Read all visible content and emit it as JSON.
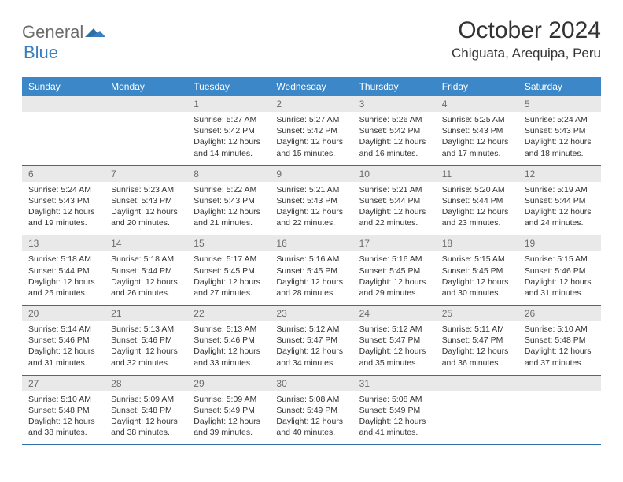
{
  "logo": {
    "text_gray": "General",
    "text_blue": "Blue"
  },
  "title": "October 2024",
  "location": "Chiguata, Arequipa, Peru",
  "colors": {
    "header_bg": "#3c87c7",
    "header_text": "#ffffff",
    "daynum_bg": "#e9e9e9",
    "daynum_text": "#6b6b6b",
    "row_border": "#2f6fa3",
    "logo_gray": "#6b6b6b",
    "logo_blue": "#3b7ebf",
    "body_text": "#333333",
    "background": "#ffffff"
  },
  "typography": {
    "title_fontsize": 30,
    "location_fontsize": 17,
    "header_fontsize": 12,
    "daynum_fontsize": 12,
    "cell_fontsize": 10.5
  },
  "day_headers": [
    "Sunday",
    "Monday",
    "Tuesday",
    "Wednesday",
    "Thursday",
    "Friday",
    "Saturday"
  ],
  "weeks": [
    {
      "nums": [
        "",
        "",
        "1",
        "2",
        "3",
        "4",
        "5"
      ],
      "cells": [
        null,
        null,
        {
          "sunrise": "Sunrise: 5:27 AM",
          "sunset": "Sunset: 5:42 PM",
          "day1": "Daylight: 12 hours",
          "day2": "and 14 minutes."
        },
        {
          "sunrise": "Sunrise: 5:27 AM",
          "sunset": "Sunset: 5:42 PM",
          "day1": "Daylight: 12 hours",
          "day2": "and 15 minutes."
        },
        {
          "sunrise": "Sunrise: 5:26 AM",
          "sunset": "Sunset: 5:42 PM",
          "day1": "Daylight: 12 hours",
          "day2": "and 16 minutes."
        },
        {
          "sunrise": "Sunrise: 5:25 AM",
          "sunset": "Sunset: 5:43 PM",
          "day1": "Daylight: 12 hours",
          "day2": "and 17 minutes."
        },
        {
          "sunrise": "Sunrise: 5:24 AM",
          "sunset": "Sunset: 5:43 PM",
          "day1": "Daylight: 12 hours",
          "day2": "and 18 minutes."
        }
      ]
    },
    {
      "nums": [
        "6",
        "7",
        "8",
        "9",
        "10",
        "11",
        "12"
      ],
      "cells": [
        {
          "sunrise": "Sunrise: 5:24 AM",
          "sunset": "Sunset: 5:43 PM",
          "day1": "Daylight: 12 hours",
          "day2": "and 19 minutes."
        },
        {
          "sunrise": "Sunrise: 5:23 AM",
          "sunset": "Sunset: 5:43 PM",
          "day1": "Daylight: 12 hours",
          "day2": "and 20 minutes."
        },
        {
          "sunrise": "Sunrise: 5:22 AM",
          "sunset": "Sunset: 5:43 PM",
          "day1": "Daylight: 12 hours",
          "day2": "and 21 minutes."
        },
        {
          "sunrise": "Sunrise: 5:21 AM",
          "sunset": "Sunset: 5:43 PM",
          "day1": "Daylight: 12 hours",
          "day2": "and 22 minutes."
        },
        {
          "sunrise": "Sunrise: 5:21 AM",
          "sunset": "Sunset: 5:44 PM",
          "day1": "Daylight: 12 hours",
          "day2": "and 22 minutes."
        },
        {
          "sunrise": "Sunrise: 5:20 AM",
          "sunset": "Sunset: 5:44 PM",
          "day1": "Daylight: 12 hours",
          "day2": "and 23 minutes."
        },
        {
          "sunrise": "Sunrise: 5:19 AM",
          "sunset": "Sunset: 5:44 PM",
          "day1": "Daylight: 12 hours",
          "day2": "and 24 minutes."
        }
      ]
    },
    {
      "nums": [
        "13",
        "14",
        "15",
        "16",
        "17",
        "18",
        "19"
      ],
      "cells": [
        {
          "sunrise": "Sunrise: 5:18 AM",
          "sunset": "Sunset: 5:44 PM",
          "day1": "Daylight: 12 hours",
          "day2": "and 25 minutes."
        },
        {
          "sunrise": "Sunrise: 5:18 AM",
          "sunset": "Sunset: 5:44 PM",
          "day1": "Daylight: 12 hours",
          "day2": "and 26 minutes."
        },
        {
          "sunrise": "Sunrise: 5:17 AM",
          "sunset": "Sunset: 5:45 PM",
          "day1": "Daylight: 12 hours",
          "day2": "and 27 minutes."
        },
        {
          "sunrise": "Sunrise: 5:16 AM",
          "sunset": "Sunset: 5:45 PM",
          "day1": "Daylight: 12 hours",
          "day2": "and 28 minutes."
        },
        {
          "sunrise": "Sunrise: 5:16 AM",
          "sunset": "Sunset: 5:45 PM",
          "day1": "Daylight: 12 hours",
          "day2": "and 29 minutes."
        },
        {
          "sunrise": "Sunrise: 5:15 AM",
          "sunset": "Sunset: 5:45 PM",
          "day1": "Daylight: 12 hours",
          "day2": "and 30 minutes."
        },
        {
          "sunrise": "Sunrise: 5:15 AM",
          "sunset": "Sunset: 5:46 PM",
          "day1": "Daylight: 12 hours",
          "day2": "and 31 minutes."
        }
      ]
    },
    {
      "nums": [
        "20",
        "21",
        "22",
        "23",
        "24",
        "25",
        "26"
      ],
      "cells": [
        {
          "sunrise": "Sunrise: 5:14 AM",
          "sunset": "Sunset: 5:46 PM",
          "day1": "Daylight: 12 hours",
          "day2": "and 31 minutes."
        },
        {
          "sunrise": "Sunrise: 5:13 AM",
          "sunset": "Sunset: 5:46 PM",
          "day1": "Daylight: 12 hours",
          "day2": "and 32 minutes."
        },
        {
          "sunrise": "Sunrise: 5:13 AM",
          "sunset": "Sunset: 5:46 PM",
          "day1": "Daylight: 12 hours",
          "day2": "and 33 minutes."
        },
        {
          "sunrise": "Sunrise: 5:12 AM",
          "sunset": "Sunset: 5:47 PM",
          "day1": "Daylight: 12 hours",
          "day2": "and 34 minutes."
        },
        {
          "sunrise": "Sunrise: 5:12 AM",
          "sunset": "Sunset: 5:47 PM",
          "day1": "Daylight: 12 hours",
          "day2": "and 35 minutes."
        },
        {
          "sunrise": "Sunrise: 5:11 AM",
          "sunset": "Sunset: 5:47 PM",
          "day1": "Daylight: 12 hours",
          "day2": "and 36 minutes."
        },
        {
          "sunrise": "Sunrise: 5:10 AM",
          "sunset": "Sunset: 5:48 PM",
          "day1": "Daylight: 12 hours",
          "day2": "and 37 minutes."
        }
      ]
    },
    {
      "nums": [
        "27",
        "28",
        "29",
        "30",
        "31",
        "",
        ""
      ],
      "cells": [
        {
          "sunrise": "Sunrise: 5:10 AM",
          "sunset": "Sunset: 5:48 PM",
          "day1": "Daylight: 12 hours",
          "day2": "and 38 minutes."
        },
        {
          "sunrise": "Sunrise: 5:09 AM",
          "sunset": "Sunset: 5:48 PM",
          "day1": "Daylight: 12 hours",
          "day2": "and 38 minutes."
        },
        {
          "sunrise": "Sunrise: 5:09 AM",
          "sunset": "Sunset: 5:49 PM",
          "day1": "Daylight: 12 hours",
          "day2": "and 39 minutes."
        },
        {
          "sunrise": "Sunrise: 5:08 AM",
          "sunset": "Sunset: 5:49 PM",
          "day1": "Daylight: 12 hours",
          "day2": "and 40 minutes."
        },
        {
          "sunrise": "Sunrise: 5:08 AM",
          "sunset": "Sunset: 5:49 PM",
          "day1": "Daylight: 12 hours",
          "day2": "and 41 minutes."
        },
        null,
        null
      ]
    }
  ]
}
